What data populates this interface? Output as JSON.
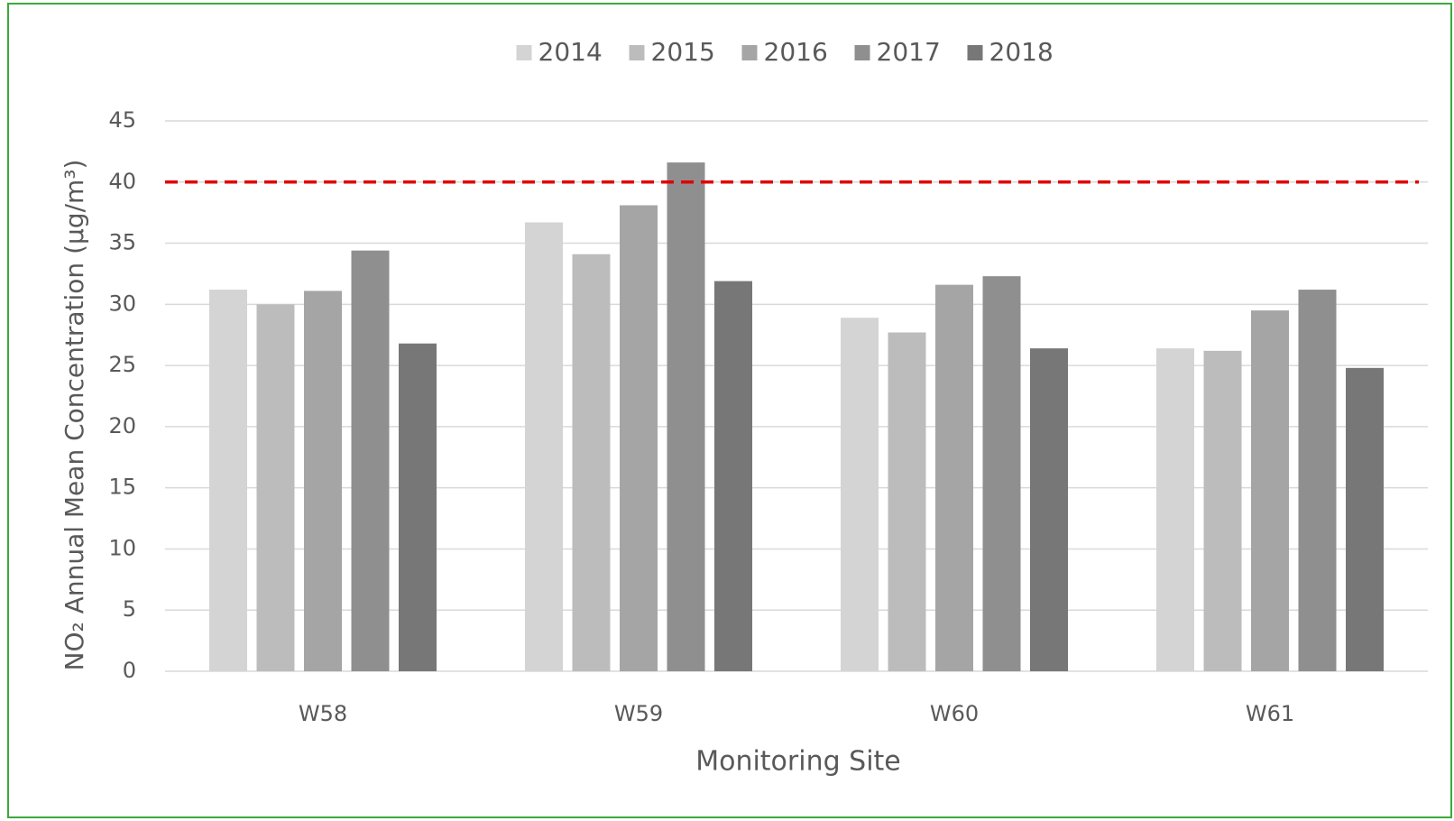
{
  "chart_data": {
    "type": "bar",
    "x_label": "Monitoring Site",
    "y_label": "NO₂ Annual Mean Concentration (µg/m³)",
    "categories": [
      "W58",
      "W59",
      "W60",
      "W61"
    ],
    "series": [
      {
        "name": "2014",
        "color": "#d4d4d4",
        "values": [
          31.2,
          36.7,
          28.9,
          26.4
        ]
      },
      {
        "name": "2015",
        "color": "#bcbcbc",
        "values": [
          30.0,
          34.1,
          27.7,
          26.2
        ]
      },
      {
        "name": "2016",
        "color": "#a5a5a5",
        "values": [
          31.1,
          38.1,
          31.6,
          29.5
        ]
      },
      {
        "name": "2017",
        "color": "#8f8f8f",
        "values": [
          34.4,
          41.6,
          32.3,
          31.2
        ]
      },
      {
        "name": "2018",
        "color": "#777777",
        "values": [
          26.8,
          31.9,
          26.4,
          24.8
        ]
      }
    ],
    "threshold": {
      "value": 40,
      "color": "#e00000"
    },
    "ylim": [
      0,
      45
    ],
    "yticks": [
      0,
      5,
      10,
      15,
      20,
      25,
      30,
      35,
      40,
      45
    ],
    "grid": true,
    "legend": "top"
  }
}
